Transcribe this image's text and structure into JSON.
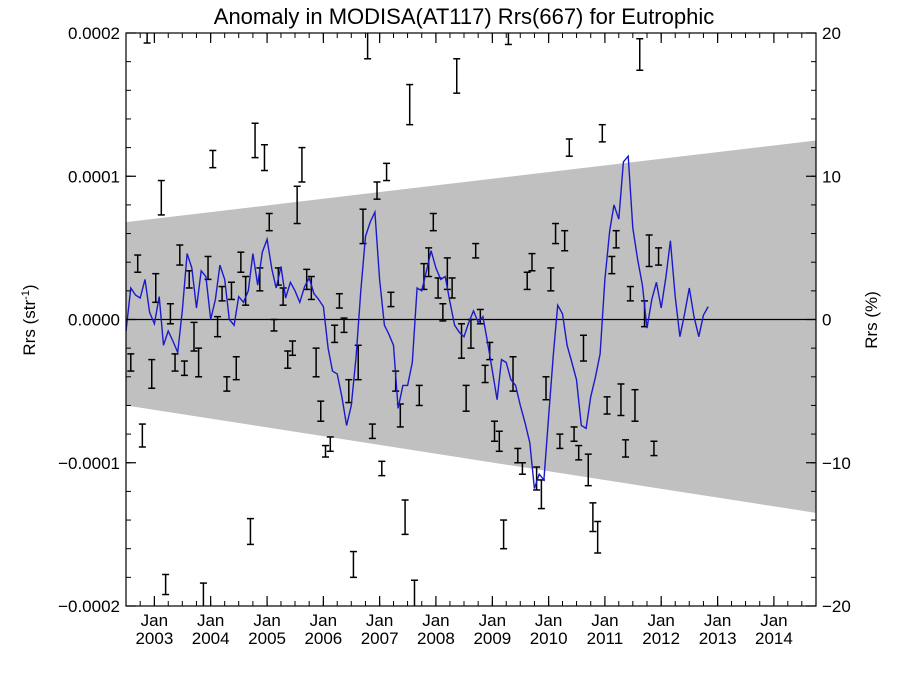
{
  "chart_data": {
    "type": "line",
    "title": "Anomaly in MODISA(AT117) Rrs(667) for Eutrophic",
    "ylabel": "Rrs (str",
    "ylabel_sup": "-1",
    "ylabel_close": ")",
    "y2label": "Rrs (%)",
    "ylim": [
      -0.0002,
      0.0002
    ],
    "y2lim": [
      -20,
      20
    ],
    "xlim": [
      "2002-07-01",
      "2014-10-01"
    ],
    "yticks": [
      {
        "value": 0.0002,
        "label": "0.0002"
      },
      {
        "value": 0.0001,
        "label": "0.0001"
      },
      {
        "value": 0,
        "label": "0.0000"
      },
      {
        "value": -0.0001,
        "label": "−0.0001"
      },
      {
        "value": -0.0002,
        "label": "−0.0002"
      }
    ],
    "y2ticks": [
      {
        "value": 20,
        "label": "20"
      },
      {
        "value": 10,
        "label": "10"
      },
      {
        "value": 0,
        "label": "0"
      },
      {
        "value": -10,
        "label": "−10"
      },
      {
        "value": -20,
        "label": "−20"
      }
    ],
    "xticks": [
      {
        "value": "2003-01-01",
        "month": "Jan",
        "year": "2003"
      },
      {
        "value": "2004-01-01",
        "month": "Jan",
        "year": "2004"
      },
      {
        "value": "2005-01-01",
        "month": "Jan",
        "year": "2005"
      },
      {
        "value": "2006-01-01",
        "month": "Jan",
        "year": "2006"
      },
      {
        "value": "2007-01-01",
        "month": "Jan",
        "year": "2007"
      },
      {
        "value": "2008-01-01",
        "month": "Jan",
        "year": "2008"
      },
      {
        "value": "2009-01-01",
        "month": "Jan",
        "year": "2009"
      },
      {
        "value": "2010-01-01",
        "month": "Jan",
        "year": "2010"
      },
      {
        "value": "2011-01-01",
        "month": "Jan",
        "year": "2011"
      },
      {
        "value": "2012-01-01",
        "month": "Jan",
        "year": "2012"
      },
      {
        "value": "2013-01-01",
        "month": "Jan",
        "year": "2013"
      },
      {
        "value": "2014-01-01",
        "month": "Jan",
        "year": "2014"
      }
    ],
    "envelope": {
      "start": "2002-07-01",
      "end": "2014-10-01",
      "upper": [
        6.8e-05,
        0.000125
      ],
      "lower": [
        -6e-05,
        -0.000135
      ]
    },
    "zero_line": 0,
    "series": [
      {
        "type": "line",
        "color": "#1a1acc",
        "start": "2002-07-01",
        "step_months": 1,
        "values": [
          -8e-06,
          2.2e-05,
          1.7e-05,
          1.5e-05,
          2.8e-05,
          5e-06,
          -3e-06,
          1.6e-05,
          -1.8e-05,
          -8e-06,
          -1.5e-05,
          -2.3e-05,
          6e-06,
          4.6e-05,
          3.6e-05,
          8e-06,
          3.4e-05,
          3e-05,
          0.0,
          1.4e-05,
          3.8e-05,
          2.8e-05,
          0.0,
          -4e-06,
          1.6e-05,
          1.2e-05,
          2e-05,
          4.6e-05,
          2.4e-05,
          4.7e-05,
          5.6e-05,
          3.5e-05,
          2.2e-05,
          3.7e-05,
          1.5e-05,
          2.6e-05,
          2e-05,
          1.2e-05,
          2.3e-05,
          2.9e-05,
          1.8e-05,
          1.4e-05,
          9e-06,
          -2e-05,
          -3.6e-05,
          -3.8e-05,
          -5.4e-05,
          -7.4e-05,
          -6e-05,
          -2.6e-05,
          2e-05,
          5.8e-05,
          6.8e-05,
          7.5e-05,
          2.8e-05,
          -4e-06,
          -1e-05,
          -1.8e-05,
          -6.2e-05,
          -4.6e-05,
          -4.6e-05,
          -3e-05,
          2.2e-05,
          2e-05,
          3.4e-05,
          4.8e-05,
          3.6e-05,
          2.8e-05,
          3e-05,
          1.2e-05,
          -4e-06,
          -9e-06,
          -1.2e-05,
          -2e-06,
          6e-06,
          -2e-06,
          2e-06,
          -1.6e-05,
          -3.6e-05,
          -5.6e-05,
          -2.8e-05,
          -3e-05,
          -4.2e-05,
          -4.6e-05,
          -6e-05,
          -7.2e-05,
          -8.6e-05,
          -0.000118,
          -0.000108,
          -0.000112,
          -6.8e-05,
          -2.4e-05,
          1e-05,
          4e-06,
          -1.8e-05,
          -3e-05,
          -4.2e-05,
          -7.4e-05,
          -7.6e-05,
          -5.4e-05,
          -4e-05,
          -2.4e-05,
          2.8e-05,
          6.2e-05,
          8e-05,
          7e-05,
          0.00011,
          0.000114,
          6.4e-05,
          4.2e-05,
          2.4e-05,
          -6e-06,
          1.4e-05,
          2.6e-05,
          8e-06,
          3e-05,
          5.5e-05,
          1.6e-05,
          -1.2e-05,
          4e-06,
          2.2e-05,
          2e-06,
          -1.2e-05,
          3e-06,
          9e-06
        ]
      },
      {
        "type": "errorbar",
        "color": "#000000",
        "points": [
          {
            "x": "2002-08-01",
            "y": -3e-05,
            "err": 6e-06
          },
          {
            "x": "2002-09-15",
            "y": 3.9e-05,
            "err": 6e-06
          },
          {
            "x": "2002-10-15",
            "y": -8.1e-05,
            "err": 8e-06
          },
          {
            "x": "2002-11-15",
            "y": 0.000201,
            "err": 8e-06
          },
          {
            "x": "2002-12-15",
            "y": -3.8e-05,
            "err": 1e-05
          },
          {
            "x": "2003-01-10",
            "y": 2.2e-05,
            "err": 1e-05
          },
          {
            "x": "2003-02-15",
            "y": 8.5e-05,
            "err": 1.2e-05
          },
          {
            "x": "2003-03-15",
            "y": -0.000185,
            "err": 7e-06
          },
          {
            "x": "2003-04-15",
            "y": 4e-06,
            "err": 7e-06
          },
          {
            "x": "2003-05-15",
            "y": -3e-05,
            "err": 6e-06
          },
          {
            "x": "2003-06-15",
            "y": 4.5e-05,
            "err": 7e-06
          },
          {
            "x": "2003-07-15",
            "y": -3.4e-05,
            "err": 5e-06
          },
          {
            "x": "2003-08-15",
            "y": 2.8e-05,
            "err": 6e-06
          },
          {
            "x": "2003-09-15",
            "y": -1.2e-05,
            "err": 1e-05
          },
          {
            "x": "2003-10-15",
            "y": -3e-05,
            "err": 1e-05
          },
          {
            "x": "2003-11-15",
            "y": -0.000193,
            "err": 9e-06
          },
          {
            "x": "2003-12-15",
            "y": 3.6e-05,
            "err": 8e-06
          },
          {
            "x": "2004-01-15",
            "y": 0.000112,
            "err": 6e-06
          },
          {
            "x": "2004-02-15",
            "y": -5e-06,
            "err": 7e-06
          },
          {
            "x": "2004-03-15",
            "y": 1.8e-05,
            "err": 5e-06
          },
          {
            "x": "2004-04-15",
            "y": -4.5e-05,
            "err": 5e-06
          },
          {
            "x": "2004-05-15",
            "y": 2e-05,
            "err": 6e-06
          },
          {
            "x": "2004-06-15",
            "y": -3.4e-05,
            "err": 8e-06
          },
          {
            "x": "2004-07-15",
            "y": 4e-05,
            "err": 7e-06
          },
          {
            "x": "2004-08-15",
            "y": 2e-05,
            "err": 1e-05
          },
          {
            "x": "2004-09-15",
            "y": -0.000148,
            "err": 9e-06
          },
          {
            "x": "2004-10-15",
            "y": 0.000125,
            "err": 1.2e-05
          },
          {
            "x": "2004-11-15",
            "y": 2.8e-05,
            "err": 8e-06
          },
          {
            "x": "2004-12-15",
            "y": 0.000113,
            "err": 9e-06
          },
          {
            "x": "2005-01-15",
            "y": 6.8e-05,
            "err": 6e-06
          },
          {
            "x": "2005-02-15",
            "y": -4e-06,
            "err": 4e-06
          },
          {
            "x": "2005-03-15",
            "y": 3e-05,
            "err": 6e-06
          },
          {
            "x": "2005-04-15",
            "y": 1.6e-05,
            "err": 6e-06
          },
          {
            "x": "2005-05-15",
            "y": -2.8e-05,
            "err": 6e-06
          },
          {
            "x": "2005-06-15",
            "y": -2e-05,
            "err": 5e-06
          },
          {
            "x": "2005-07-15",
            "y": 8e-05,
            "err": 1.3e-05
          },
          {
            "x": "2005-08-15",
            "y": 0.000108,
            "err": 1.2e-05
          },
          {
            "x": "2005-09-15",
            "y": 2.8e-05,
            "err": 7e-06
          },
          {
            "x": "2005-10-15",
            "y": 2.2e-05,
            "err": 8e-06
          },
          {
            "x": "2005-11-15",
            "y": -3e-05,
            "err": 1e-05
          },
          {
            "x": "2005-12-15",
            "y": -6.4e-05,
            "err": 7e-06
          },
          {
            "x": "2006-01-15",
            "y": -9.2e-05,
            "err": 4e-06
          },
          {
            "x": "2006-02-15",
            "y": -8.7e-05,
            "err": 5e-06
          },
          {
            "x": "2006-03-15",
            "y": -1e-05,
            "err": 6e-06
          },
          {
            "x": "2006-04-15",
            "y": 1.3e-05,
            "err": 5e-06
          },
          {
            "x": "2006-05-15",
            "y": -4e-06,
            "err": 5e-06
          },
          {
            "x": "2006-06-15",
            "y": -5e-05,
            "err": 8e-06
          },
          {
            "x": "2006-07-15",
            "y": -0.000171,
            "err": 9e-06
          },
          {
            "x": "2006-08-15",
            "y": -3e-05,
            "err": 1.2e-05
          },
          {
            "x": "2006-09-15",
            "y": 6.5e-05,
            "err": 1.2e-05
          },
          {
            "x": "2006-10-15",
            "y": 0.000193,
            "err": 1.1e-05
          },
          {
            "x": "2006-11-15",
            "y": -7.8e-05,
            "err": 5e-06
          },
          {
            "x": "2006-12-15",
            "y": 9e-05,
            "err": 6e-06
          },
          {
            "x": "2007-01-15",
            "y": -0.000104,
            "err": 5e-06
          },
          {
            "x": "2007-02-15",
            "y": 0.000103,
            "err": 6e-06
          },
          {
            "x": "2007-03-15",
            "y": 1.4e-05,
            "err": 5e-06
          },
          {
            "x": "2007-04-15",
            "y": -4.3e-05,
            "err": 7e-06
          },
          {
            "x": "2007-05-15",
            "y": -6.7e-05,
            "err": 8e-06
          },
          {
            "x": "2007-06-15",
            "y": -0.000138,
            "err": 1.2e-05
          },
          {
            "x": "2007-07-15",
            "y": 0.00015,
            "err": 1.4e-05
          },
          {
            "x": "2007-08-15",
            "y": -0.000192,
            "err": 1e-05
          },
          {
            "x": "2007-09-15",
            "y": -5.3e-05,
            "err": 7e-06
          },
          {
            "x": "2007-10-15",
            "y": 3e-05,
            "err": 9e-06
          },
          {
            "x": "2007-11-15",
            "y": 4e-05,
            "err": 1e-05
          },
          {
            "x": "2007-12-15",
            "y": 6.8e-05,
            "err": 6e-06
          },
          {
            "x": "2008-01-15",
            "y": 2.2e-05,
            "err": 7e-06
          },
          {
            "x": "2008-02-15",
            "y": 5e-06,
            "err": 6e-06
          },
          {
            "x": "2008-03-15",
            "y": 3.2e-05,
            "err": 1.1e-05
          },
          {
            "x": "2008-04-15",
            "y": 2.2e-05,
            "err": 7e-06
          },
          {
            "x": "2008-05-15",
            "y": 0.00017,
            "err": 1.2e-05
          },
          {
            "x": "2008-06-15",
            "y": -1.5e-05,
            "err": 1.2e-05
          },
          {
            "x": "2008-07-15",
            "y": -5.5e-05,
            "err": 9e-06
          },
          {
            "x": "2008-08-15",
            "y": -1e-05,
            "err": 1e-05
          },
          {
            "x": "2008-09-15",
            "y": 4.8e-05,
            "err": 5e-06
          },
          {
            "x": "2008-10-15",
            "y": 2e-06,
            "err": 5e-06
          },
          {
            "x": "2008-11-15",
            "y": -3.8e-05,
            "err": 6e-06
          },
          {
            "x": "2008-12-15",
            "y": -2.2e-05,
            "err": 6e-06
          },
          {
            "x": "2009-01-15",
            "y": -7.8e-05,
            "err": 7e-06
          },
          {
            "x": "2009-02-15",
            "y": -8.5e-05,
            "err": 7e-06
          },
          {
            "x": "2009-03-15",
            "y": -0.00015,
            "err": 1e-05
          },
          {
            "x": "2009-04-15",
            "y": 0.0002,
            "err": 8e-06
          },
          {
            "x": "2009-05-15",
            "y": -3.8e-05,
            "err": 1.2e-05
          },
          {
            "x": "2009-06-15",
            "y": -9.5e-05,
            "err": 5e-06
          },
          {
            "x": "2009-07-15",
            "y": -0.000104,
            "err": 4e-06
          },
          {
            "x": "2009-08-15",
            "y": 2.7e-05,
            "err": 6e-06
          },
          {
            "x": "2009-09-15",
            "y": 4e-05,
            "err": 6e-06
          },
          {
            "x": "2009-10-15",
            "y": -0.000111,
            "err": 8e-06
          },
          {
            "x": "2009-11-15",
            "y": -0.000122,
            "err": 1e-05
          },
          {
            "x": "2009-12-15",
            "y": -4.8e-05,
            "err": 8e-06
          },
          {
            "x": "2010-01-15",
            "y": 2.8e-05,
            "err": 8e-06
          },
          {
            "x": "2010-02-15",
            "y": 6e-05,
            "err": 7e-06
          },
          {
            "x": "2010-03-15",
            "y": -8.5e-05,
            "err": 5e-06
          },
          {
            "x": "2010-04-15",
            "y": 5.5e-05,
            "err": 7e-06
          },
          {
            "x": "2010-05-15",
            "y": 0.00012,
            "err": 6e-06
          },
          {
            "x": "2010-06-15",
            "y": -8e-05,
            "err": 5e-06
          },
          {
            "x": "2010-07-15",
            "y": -9.3e-05,
            "err": 5e-06
          },
          {
            "x": "2010-08-15",
            "y": -2e-05,
            "err": 9e-06
          },
          {
            "x": "2010-09-15",
            "y": -0.000105,
            "err": 1.1e-05
          },
          {
            "x": "2010-10-15",
            "y": -0.000138,
            "err": 1e-05
          },
          {
            "x": "2010-11-15",
            "y": -0.000152,
            "err": 1.1e-05
          },
          {
            "x": "2010-12-15",
            "y": 0.00013,
            "err": 6e-06
          },
          {
            "x": "2011-01-15",
            "y": -6e-05,
            "err": 6e-06
          },
          {
            "x": "2011-02-15",
            "y": 3.8e-05,
            "err": 6e-06
          },
          {
            "x": "2011-03-15",
            "y": 5.6e-05,
            "err": 6e-06
          },
          {
            "x": "2011-04-15",
            "y": -5.6e-05,
            "err": 1.1e-05
          },
          {
            "x": "2011-05-15",
            "y": -9e-05,
            "err": 6e-06
          },
          {
            "x": "2011-06-15",
            "y": 1.8e-05,
            "err": 5e-06
          },
          {
            "x": "2011-07-15",
            "y": -6e-05,
            "err": 1.1e-05
          },
          {
            "x": "2011-08-15",
            "y": 0.000185,
            "err": 1.1e-05
          },
          {
            "x": "2011-09-15",
            "y": 4e-06,
            "err": 9e-06
          },
          {
            "x": "2011-10-15",
            "y": 4.8e-05,
            "err": 1.1e-05
          },
          {
            "x": "2011-11-15",
            "y": -9e-05,
            "err": 5e-06
          },
          {
            "x": "2011-12-15",
            "y": 4.4e-05,
            "err": 6e-06
          }
        ]
      }
    ]
  }
}
